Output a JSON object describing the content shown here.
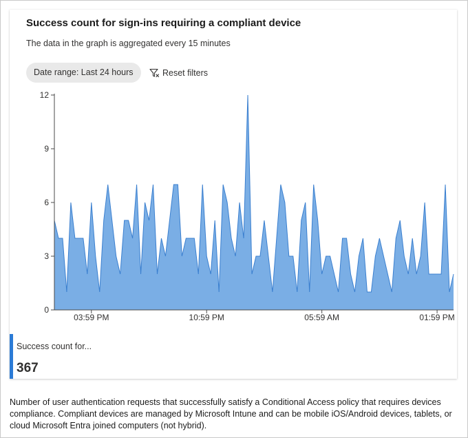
{
  "card": {
    "title": "Success count for sign-ins requiring a compliant device",
    "subtitle": "The data in the graph is aggregated every 15 minutes",
    "date_range_label": "Date range: Last 24 hours",
    "reset_filters_label": "Reset filters",
    "filter_icon": "filter-icon"
  },
  "legend": {
    "label": "Success count for...",
    "value": "367",
    "color": "#2b7bd6"
  },
  "description": "Number of user authentication requests that successfully satisfy a Conditional Access policy that requires devices compliance. Compliant devices are managed by Microsoft Intune and can be mobile iOS/Android devices, tablets, or cloud Microsoft Entra joined computers (not hybrid).",
  "chart_data": {
    "type": "area",
    "fill_color": "#7aaee5",
    "line_color": "#3a7fcf",
    "ylim": [
      0,
      12
    ],
    "y_ticks": [
      0,
      3,
      6,
      9,
      12
    ],
    "x_tick_labels": [
      "03:59 PM",
      "10:59 PM",
      "05:59 AM",
      "01:59 PM"
    ],
    "x_tick_index": [
      9,
      37,
      65,
      93
    ],
    "series": [
      {
        "values": [
          5,
          4,
          4,
          1,
          6,
          4,
          4,
          4,
          2,
          6,
          3,
          1,
          5,
          7,
          5,
          3,
          2,
          5,
          5,
          4,
          7,
          2,
          6,
          5,
          7,
          2,
          4,
          3,
          5,
          7,
          7,
          3,
          4,
          4,
          4,
          2,
          7,
          3,
          2,
          5,
          1,
          7,
          6,
          4,
          3,
          6,
          4,
          12,
          2,
          3,
          3,
          5,
          3,
          1,
          4,
          7,
          6,
          3,
          3,
          1,
          5,
          6,
          1,
          7,
          5,
          2,
          3,
          3,
          2,
          1,
          4,
          4,
          2,
          1,
          3,
          4,
          1,
          1,
          3,
          4,
          3,
          2,
          1,
          4,
          5,
          3,
          2,
          4,
          2,
          3,
          6,
          2,
          2,
          2,
          2,
          7,
          1,
          2
        ]
      }
    ]
  }
}
